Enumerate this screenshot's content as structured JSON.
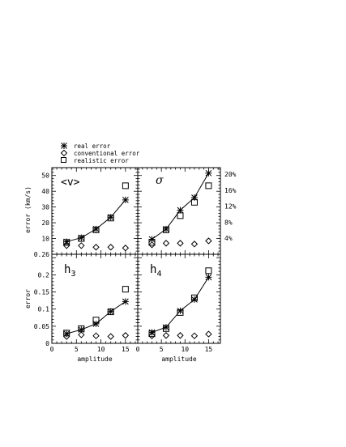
{
  "legend": {
    "items": [
      {
        "marker": "asterisk",
        "label": "real error"
      },
      {
        "marker": "diamond",
        "label": "conventional error"
      },
      {
        "marker": "square",
        "label": "realistic error"
      }
    ]
  },
  "shared_xlabel": "amplitude",
  "chart_data": [
    {
      "type": "line",
      "panel_label": "<v>",
      "ylabel": "error (km/s)",
      "xlim": [
        0,
        17.5
      ],
      "ylim": [
        0,
        55
      ],
      "xticks": [
        0,
        5,
        10,
        15
      ],
      "yticks": [
        10,
        20,
        30,
        40,
        50
      ],
      "series": [
        {
          "marker": "asterisk",
          "x": [
            3,
            6,
            9,
            12,
            15
          ],
          "y": [
            8.0,
            10.5,
            16.0,
            23.5,
            34.5
          ]
        },
        {
          "marker": "diamond",
          "x": [
            3,
            6,
            9,
            12,
            15
          ],
          "y": [
            5.5,
            5.5,
            4.5,
            4.5,
            4.0
          ]
        },
        {
          "marker": "square",
          "x": [
            3,
            6,
            9,
            12,
            15
          ],
          "y": [
            7.5,
            10.0,
            15.5,
            23.0,
            43.5
          ]
        }
      ]
    },
    {
      "type": "line",
      "panel_label": "σ",
      "xlim": [
        0,
        17.5
      ],
      "ylim": [
        0,
        55
      ],
      "xticks": [
        0,
        5,
        10,
        15
      ],
      "right_ytick_labels": [
        {
          "y": 10.2,
          "label": "4%"
        },
        {
          "y": 20.3,
          "label": "8%"
        },
        {
          "y": 30.5,
          "label": "12%"
        },
        {
          "y": 40.7,
          "label": "16%"
        },
        {
          "y": 50.8,
          "label": "20%"
        }
      ],
      "series": [
        {
          "marker": "asterisk",
          "x": [
            3,
            6,
            9,
            12,
            15
          ],
          "y": [
            9.5,
            16.0,
            28.0,
            36.0,
            51.5
          ]
        },
        {
          "marker": "diamond",
          "x": [
            3,
            6,
            9,
            12,
            15
          ],
          "y": [
            6.0,
            7.0,
            7.0,
            6.5,
            8.5
          ]
        },
        {
          "marker": "square",
          "x": [
            3,
            6,
            9,
            12,
            15
          ],
          "y": [
            7.5,
            15.5,
            24.5,
            33.0,
            43.5
          ]
        }
      ]
    },
    {
      "type": "line",
      "panel_label": "h3",
      "ylabel": "error",
      "xlabel": "amplitude",
      "xlim": [
        0,
        17.5
      ],
      "ylim": [
        0,
        0.26
      ],
      "xticks": [
        0,
        5,
        10,
        15
      ],
      "ytick_labels": [
        {
          "y": 0,
          "label": "0"
        },
        {
          "y": 0.05,
          "label": "0.05"
        },
        {
          "y": 0.1,
          "label": "0.1"
        },
        {
          "y": 0.15,
          "label": "0.15"
        },
        {
          "y": 0.2,
          "label": "0.2"
        },
        {
          "y": 0.26,
          "label": "0.26"
        }
      ],
      "series": [
        {
          "marker": "asterisk",
          "x": [
            3,
            6,
            9,
            12,
            15
          ],
          "y": [
            0.028,
            0.04,
            0.057,
            0.093,
            0.122
          ]
        },
        {
          "marker": "diamond",
          "x": [
            3,
            6,
            9,
            12,
            15
          ],
          "y": [
            0.02,
            0.025,
            0.022,
            0.02,
            0.023
          ]
        },
        {
          "marker": "square",
          "x": [
            3,
            6,
            9,
            12,
            15
          ],
          "y": [
            0.03,
            0.043,
            0.068,
            0.092,
            0.158
          ]
        }
      ]
    },
    {
      "type": "line",
      "panel_label": "h4",
      "xlabel": "amplitude",
      "xlim": [
        0,
        17.5
      ],
      "ylim": [
        0,
        0.26
      ],
      "xticks": [
        0,
        5,
        10,
        15
      ],
      "series": [
        {
          "marker": "asterisk",
          "x": [
            3,
            6,
            9,
            12,
            15
          ],
          "y": [
            0.032,
            0.047,
            0.095,
            0.128,
            0.193
          ]
        },
        {
          "marker": "diamond",
          "x": [
            3,
            6,
            9,
            12,
            15
          ],
          "y": [
            0.022,
            0.023,
            0.023,
            0.022,
            0.027
          ]
        },
        {
          "marker": "square",
          "x": [
            3,
            6,
            9,
            12,
            15
          ],
          "y": [
            0.028,
            0.043,
            0.09,
            0.133,
            0.212
          ]
        }
      ]
    }
  ]
}
